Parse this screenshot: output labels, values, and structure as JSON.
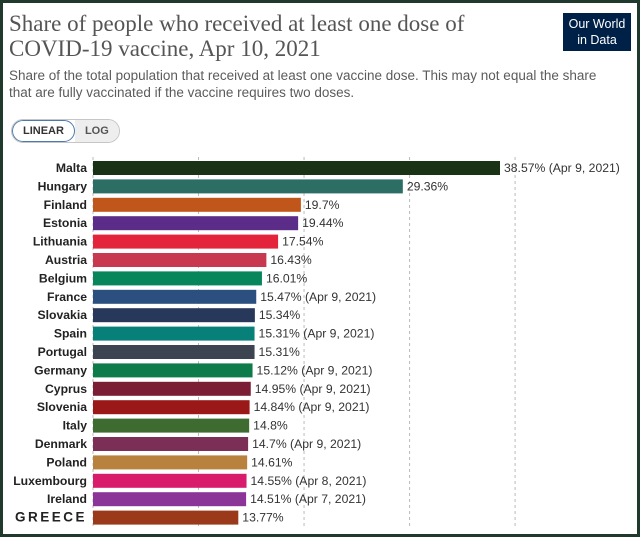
{
  "header": {
    "title": "Share of people who received at least one dose of COVID-19 vaccine, Apr 10, 2021",
    "subtitle": "Share of the total population that received at least one vaccine dose. This may not equal the share that are fully vaccinated if the vaccine requires two doses.",
    "logo_line1": "Our World",
    "logo_line2": "in Data"
  },
  "controls": {
    "linear_label": "LINEAR",
    "log_label": "LOG",
    "selected": "linear"
  },
  "chart_data": {
    "type": "bar",
    "orientation": "horizontal",
    "title": "Share of people who received at least one dose of COVID-19 vaccine, Apr 10, 2021",
    "xlim": [
      0,
      40
    ],
    "grid": true,
    "categories": [
      "Malta",
      "Hungary",
      "Finland",
      "Estonia",
      "Lithuania",
      "Austria",
      "Belgium",
      "France",
      "Slovakia",
      "Spain",
      "Portugal",
      "Germany",
      "Cyprus",
      "Slovenia",
      "Italy",
      "Denmark",
      "Poland",
      "Luxembourg",
      "Ireland",
      "GREECE"
    ],
    "values": [
      38.57,
      29.36,
      19.7,
      19.44,
      17.54,
      16.43,
      16.01,
      15.47,
      15.34,
      15.31,
      15.31,
      15.12,
      14.95,
      14.84,
      14.8,
      14.7,
      14.61,
      14.55,
      14.51,
      13.77
    ],
    "value_labels": [
      "38.57% (Apr 9, 2021)",
      "29.36%",
      "19.7%",
      "19.44%",
      "17.54%",
      "16.43%",
      "16.01%",
      "15.47% (Apr 9, 2021)",
      "15.34%",
      "15.31% (Apr 9, 2021)",
      "15.31%",
      "15.12% (Apr 9, 2021)",
      "14.95% (Apr 9, 2021)",
      "14.84% (Apr 9, 2021)",
      "14.8%",
      "14.7% (Apr 9, 2021)",
      "14.61%",
      "14.55% (Apr 8, 2021)",
      "14.51% (Apr 7, 2021)",
      "13.77%"
    ],
    "colors": [
      "#1b3315",
      "#2c6e63",
      "#c0561a",
      "#5b2d88",
      "#e3243b",
      "#c8384f",
      "#06865a",
      "#2b4f7f",
      "#28385a",
      "#08807a",
      "#3b4450",
      "#0d7c4a",
      "#7b1d34",
      "#9a1818",
      "#3e6b30",
      "#7b2f57",
      "#b8813d",
      "#d81b6b",
      "#8c3598",
      "#9a3a1b"
    ]
  }
}
